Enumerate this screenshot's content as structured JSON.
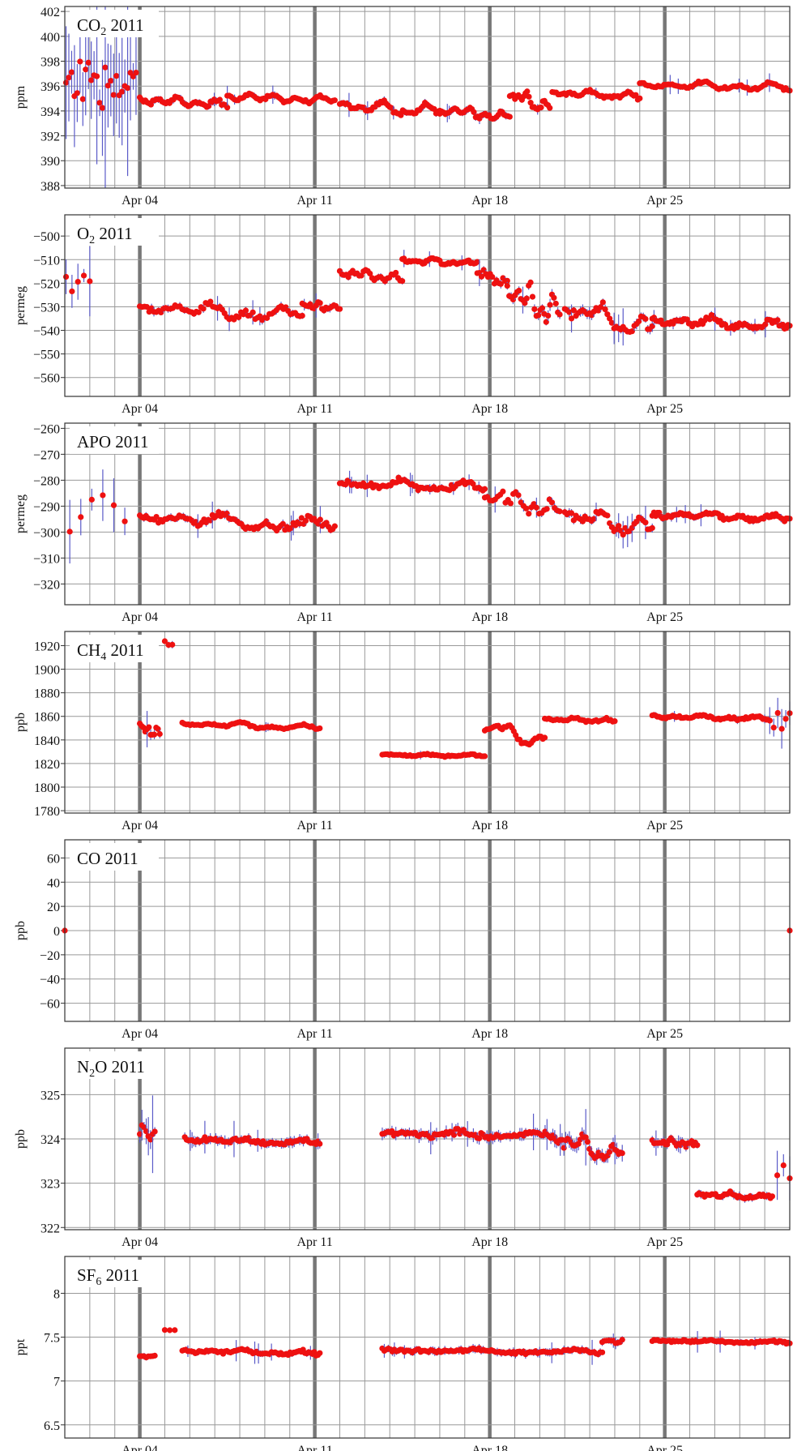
{
  "colors": {
    "point": "#ee1111",
    "errorbar": "#5a5ac8",
    "grid_minor": "#999999",
    "grid_major": "#777777",
    "frame": "#333333"
  },
  "x_axis": {
    "min": 0,
    "max": 29,
    "unit": "days since Apr 01 2011",
    "ticks": [
      {
        "x": 3,
        "label": "Apr 04"
      },
      {
        "x": 10,
        "label": "Apr 11"
      },
      {
        "x": 17,
        "label": "Apr 18"
      },
      {
        "x": 24,
        "label": "Apr 25"
      }
    ]
  },
  "chart_data": [
    {
      "type": "scatter",
      "title_main": "CO",
      "title_sub": "2",
      "title_rest": " 2011",
      "ylabel": "ppm",
      "ylim": [
        387.8,
        402.4
      ],
      "yticks": [
        388,
        390,
        392,
        394,
        396,
        398,
        400,
        402
      ],
      "segments": [
        {
          "x0": 0.05,
          "x1": 2.85,
          "n": 26,
          "base": 396,
          "amp": 4,
          "wave": [
            0.0,
            0.0,
            0.0
          ],
          "noise": 4.5,
          "err": 3.5
        },
        {
          "x0": 3.0,
          "x1": 6.5,
          "n": 48,
          "base": 394.7,
          "amp": 0.4,
          "wave": [
            0.8,
            0.5,
            1.0
          ],
          "noise": 0.25,
          "err": 0.25
        },
        {
          "x0": 6.5,
          "x1": 10.8,
          "n": 60,
          "base": 395.0,
          "amp": 0.35,
          "wave": [
            0.9,
            0.3,
            1.2
          ],
          "noise": 0.2,
          "err": 0.2
        },
        {
          "x0": 11.0,
          "x1": 15.0,
          "n": 55,
          "base": 394.2,
          "amp": 0.6,
          "wave": [
            0.7,
            1.1,
            0.6
          ],
          "noise": 0.25,
          "err": 0.25
        },
        {
          "x0": 15.0,
          "x1": 17.8,
          "n": 38,
          "base": 393.8,
          "amp": 0.5,
          "wave": [
            1.0,
            0.2,
            0.9
          ],
          "noise": 0.2,
          "err": 0.25
        },
        {
          "x0": 17.8,
          "x1": 19.4,
          "n": 24,
          "base": 394.8,
          "amp": 0.9,
          "wave": [
            1.2,
            0.8,
            0.4
          ],
          "noise": 0.2,
          "err": 0.2
        },
        {
          "x0": 19.5,
          "x1": 23.0,
          "n": 45,
          "base": 395.3,
          "amp": 0.4,
          "wave": [
            0.6,
            0.9,
            0.5
          ],
          "noise": 0.2,
          "err": 0.2
        },
        {
          "x0": 23.0,
          "x1": 29.0,
          "n": 75,
          "base": 396.0,
          "amp": 0.35,
          "wave": [
            0.5,
            0.7,
            1.1
          ],
          "noise": 0.2,
          "err": 0.2
        }
      ]
    },
    {
      "type": "scatter",
      "title_main": "O",
      "title_sub": "2",
      "title_rest": " 2011",
      "ylabel": "permeg",
      "ylim": [
        -568,
        -491
      ],
      "yticks": [
        -560,
        -550,
        -540,
        -530,
        -520,
        -510,
        -500
      ],
      "segments": [
        {
          "x0": 0.05,
          "x1": 1.0,
          "n": 5,
          "base": -520,
          "amp": 10,
          "wave": [
            0.0,
            0.0,
            0.0
          ],
          "noise": 8,
          "err": 6
        },
        {
          "x0": 3.0,
          "x1": 9.5,
          "n": 70,
          "base": -532,
          "amp": 3,
          "wave": [
            1.1,
            0.7,
            0.9
          ],
          "noise": 2.2,
          "err": 1.5
        },
        {
          "x0": 9.5,
          "x1": 11.0,
          "n": 20,
          "base": -530,
          "amp": 2,
          "wave": [
            0.8,
            1.0,
            0.4
          ],
          "noise": 1.5,
          "err": 1.5
        },
        {
          "x0": 11.0,
          "x1": 13.5,
          "n": 30,
          "base": -517,
          "amp": 3,
          "wave": [
            0.9,
            0.5,
            0.8
          ],
          "noise": 1.8,
          "err": 1.2
        },
        {
          "x0": 13.5,
          "x1": 16.5,
          "n": 45,
          "base": -511,
          "amp": 1.5,
          "wave": [
            0.7,
            0.9,
            0.6
          ],
          "noise": 1.2,
          "err": 1.0
        },
        {
          "x0": 16.5,
          "x1": 17.7,
          "n": 15,
          "base": -518,
          "amp": 4,
          "wave": [
            1.2,
            0.3,
            0.5
          ],
          "noise": 2,
          "err": 1.5
        },
        {
          "x0": 17.7,
          "x1": 19.8,
          "n": 28,
          "base": -528,
          "amp": 8,
          "wave": [
            1.0,
            0.6,
            0.9
          ],
          "noise": 3,
          "err": 2
        },
        {
          "x0": 20.0,
          "x1": 23.5,
          "n": 40,
          "base": -535,
          "amp": 6,
          "wave": [
            1.3,
            0.8,
            0.6
          ],
          "noise": 3,
          "err": 2
        },
        {
          "x0": 23.5,
          "x1": 29.0,
          "n": 80,
          "base": -537,
          "amp": 2.5,
          "wave": [
            0.9,
            0.6,
            1.0
          ],
          "noise": 1.8,
          "err": 1.3
        }
      ]
    },
    {
      "type": "scatter",
      "title_main": "APO",
      "title_sub": "",
      "title_rest": " 2011",
      "ylabel": "permeg",
      "ylim": [
        -328,
        -258
      ],
      "yticks": [
        -320,
        -310,
        -300,
        -290,
        -280,
        -270,
        -260
      ],
      "segments": [
        {
          "x0": 0.2,
          "x1": 2.4,
          "n": 6,
          "base": -292,
          "amp": 12,
          "wave": [
            0.0,
            0.0,
            0.0
          ],
          "noise": 13,
          "err": 10
        },
        {
          "x0": 3.0,
          "x1": 10.8,
          "n": 95,
          "base": -296,
          "amp": 3,
          "wave": [
            1.0,
            0.7,
            0.9
          ],
          "noise": 2,
          "err": 1.3
        },
        {
          "x0": 11.0,
          "x1": 16.8,
          "n": 75,
          "base": -282,
          "amp": 2,
          "wave": [
            0.6,
            0.9,
            0.7
          ],
          "noise": 1.5,
          "err": 1.1
        },
        {
          "x0": 16.8,
          "x1": 19.8,
          "n": 30,
          "base": -289,
          "amp": 5,
          "wave": [
            1.2,
            0.5,
            0.8
          ],
          "noise": 2.5,
          "err": 1.5
        },
        {
          "x0": 20.0,
          "x1": 23.5,
          "n": 40,
          "base": -296,
          "amp": 5,
          "wave": [
            1.1,
            0.9,
            0.5
          ],
          "noise": 2.5,
          "err": 1.5
        },
        {
          "x0": 23.5,
          "x1": 29.0,
          "n": 80,
          "base": -294,
          "amp": 1.5,
          "wave": [
            0.8,
            0.6,
            1.0
          ],
          "noise": 1.3,
          "err": 1.1
        }
      ]
    },
    {
      "type": "scatter",
      "title_main": "CH",
      "title_sub": "4",
      "title_rest": " 2011",
      "ylabel": "ppb",
      "ylim": [
        1778,
        1932
      ],
      "yticks": [
        1780,
        1800,
        1820,
        1840,
        1860,
        1880,
        1900,
        1920
      ],
      "segments": [
        {
          "x0": 3.0,
          "x1": 3.8,
          "n": 12,
          "base": 1848,
          "amp": 5,
          "wave": [
            0.8,
            0.5,
            0.4
          ],
          "noise": 5,
          "err": 4
        },
        {
          "x0": 4.0,
          "x1": 4.3,
          "n": 3,
          "base": 1922,
          "amp": 4,
          "wave": [
            0.0,
            0.0,
            0.0
          ],
          "noise": 3,
          "err": 3
        },
        {
          "x0": 4.7,
          "x1": 10.2,
          "n": 70,
          "base": 1852,
          "amp": 4,
          "wave": [
            0.7,
            0.5,
            0.6
          ],
          "noise": 1.2,
          "err": 1
        },
        {
          "x0": 12.7,
          "x1": 16.8,
          "n": 60,
          "base": 1827,
          "amp": 2,
          "wave": [
            0.4,
            0.6,
            0.3
          ],
          "noise": 1,
          "err": 1
        },
        {
          "x0": 16.8,
          "x1": 19.2,
          "n": 32,
          "base": 1845,
          "amp": 12,
          "wave": [
            1.3,
            0.4,
            0.2
          ],
          "noise": 1.5,
          "err": 1
        },
        {
          "x0": 19.2,
          "x1": 22.0,
          "n": 35,
          "base": 1857,
          "amp": 2.5,
          "wave": [
            0.6,
            0.8,
            0.5
          ],
          "noise": 1.5,
          "err": 1
        },
        {
          "x0": 23.5,
          "x1": 28.2,
          "n": 70,
          "base": 1859,
          "amp": 2.5,
          "wave": [
            0.7,
            0.6,
            0.8
          ],
          "noise": 1.5,
          "err": 1.2
        },
        {
          "x0": 28.2,
          "x1": 29.0,
          "n": 6,
          "base": 1860,
          "amp": 20,
          "wave": [
            0.0,
            0.0,
            0.0
          ],
          "noise": 18,
          "err": 18
        }
      ]
    },
    {
      "type": "scatter",
      "title_main": "CO",
      "title_sub": "",
      "title_rest": " 2011",
      "ylabel": "ppb",
      "ylim": [
        -75,
        75
      ],
      "yticks": [
        -60,
        -40,
        -20,
        0,
        20,
        40,
        60
      ],
      "segments": [
        {
          "x0": 0.0,
          "x1": 0.0,
          "n": 1,
          "base": 0,
          "amp": 0,
          "wave": [
            0.0,
            0.0,
            0.0
          ],
          "noise": 0,
          "err": 0
        },
        {
          "x0": 29.0,
          "x1": 29.0,
          "n": 1,
          "base": 0,
          "amp": 0,
          "wave": [
            0.0,
            0.0,
            0.0
          ],
          "noise": 0,
          "err": 0
        }
      ]
    },
    {
      "type": "scatter",
      "title_main": "N",
      "title_sub": "2",
      "title_rest": "O 2011",
      "ylabel": "ppb",
      "ylim": [
        321.95,
        326.05
      ],
      "yticks": [
        322,
        323,
        324,
        325
      ],
      "segments": [
        {
          "x0": 3.0,
          "x1": 3.6,
          "n": 8,
          "base": 324.15,
          "amp": 0.25,
          "wave": [
            1.0,
            0.0,
            0.0
          ],
          "noise": 0.1,
          "err": 0.3
        },
        {
          "x0": 4.8,
          "x1": 10.2,
          "n": 75,
          "base": 323.95,
          "amp": 0.1,
          "wave": [
            0.6,
            0.4,
            0.5
          ],
          "noise": 0.08,
          "err": 0.1
        },
        {
          "x0": 12.7,
          "x1": 19.6,
          "n": 90,
          "base": 324.1,
          "amp": 0.12,
          "wave": [
            0.5,
            0.6,
            0.4
          ],
          "noise": 0.1,
          "err": 0.12
        },
        {
          "x0": 19.6,
          "x1": 22.3,
          "n": 38,
          "base": 323.8,
          "amp": 0.35,
          "wave": [
            1.1,
            0.6,
            0.5
          ],
          "noise": 0.12,
          "err": 0.15
        },
        {
          "x0": 23.5,
          "x1": 25.3,
          "n": 25,
          "base": 323.9,
          "amp": 0.12,
          "wave": [
            0.5,
            0.4,
            0.6
          ],
          "noise": 0.08,
          "err": 0.1
        },
        {
          "x0": 25.3,
          "x1": 28.3,
          "n": 42,
          "base": 322.72,
          "amp": 0.1,
          "wave": [
            0.6,
            0.7,
            0.4
          ],
          "noise": 0.06,
          "err": 0.08
        },
        {
          "x0": 28.5,
          "x1": 29.0,
          "n": 3,
          "base": 323.1,
          "amp": 0.3,
          "wave": [
            0.0,
            0.0,
            0.0
          ],
          "noise": 0.4,
          "err": 0.5
        }
      ]
    },
    {
      "type": "scatter",
      "title_main": "SF",
      "title_sub": "6",
      "title_rest": " 2011",
      "ylabel": "ppt",
      "ylim": [
        6.35,
        8.42
      ],
      "yticks": [
        6.5,
        7.0,
        7.5,
        8.0
      ],
      "segments": [
        {
          "x0": 3.0,
          "x1": 3.6,
          "n": 8,
          "base": 7.28,
          "amp": 0.03,
          "wave": [
            0.0,
            0.0,
            0.0
          ],
          "noise": 0.02,
          "err": 0.03
        },
        {
          "x0": 4.0,
          "x1": 4.4,
          "n": 3,
          "base": 7.58,
          "amp": 0.02,
          "wave": [
            0.0,
            0.0,
            0.0
          ],
          "noise": 0.01,
          "err": 0.02
        },
        {
          "x0": 4.7,
          "x1": 10.2,
          "n": 75,
          "base": 7.33,
          "amp": 0.04,
          "wave": [
            0.6,
            0.4,
            0.5
          ],
          "noise": 0.03,
          "err": 0.03
        },
        {
          "x0": 12.7,
          "x1": 21.5,
          "n": 110,
          "base": 7.34,
          "amp": 0.04,
          "wave": [
            0.5,
            0.6,
            0.4
          ],
          "noise": 0.03,
          "err": 0.04
        },
        {
          "x0": 21.5,
          "x1": 22.3,
          "n": 10,
          "base": 7.45,
          "amp": 0.05,
          "wave": [
            0.5,
            0.0,
            0.0
          ],
          "noise": 0.03,
          "err": 0.04
        },
        {
          "x0": 23.5,
          "x1": 29.0,
          "n": 80,
          "base": 7.45,
          "amp": 0.03,
          "wave": [
            0.6,
            0.5,
            0.4
          ],
          "noise": 0.02,
          "err": 0.03
        }
      ]
    }
  ]
}
